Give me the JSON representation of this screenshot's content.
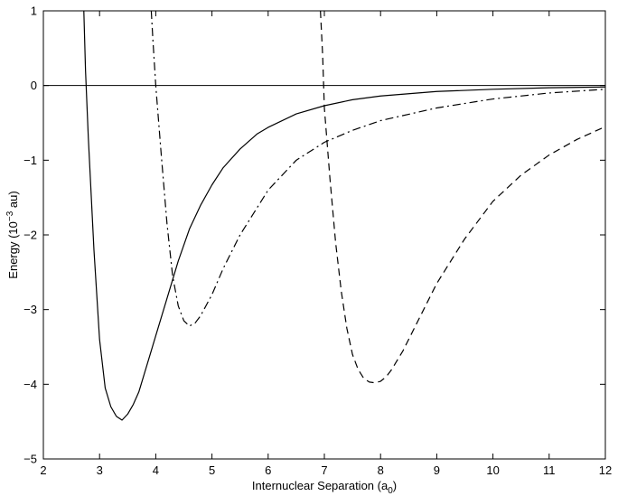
{
  "chart_data": {
    "type": "line",
    "title": "",
    "xlabel": "Internuclear Separation (a",
    "xlabel_sub": "0",
    "xlabel_close": ")",
    "ylabel": "Energy (10",
    "ylabel_sup": "−3",
    "ylabel_tail": " au)",
    "xlim": [
      2,
      12
    ],
    "ylim": [
      -5,
      1
    ],
    "xticks": [
      2,
      3,
      4,
      5,
      6,
      7,
      8,
      9,
      10,
      11,
      12
    ],
    "yticks": [
      -5,
      -4,
      -3,
      -2,
      -1,
      0,
      1
    ],
    "grid": false,
    "legend": "none",
    "reference_line": {
      "y": 0,
      "style": "solid"
    },
    "series": [
      {
        "style": "solid",
        "color": "#000000",
        "x": [
          2.72,
          2.75,
          2.8,
          2.9,
          3.0,
          3.1,
          3.2,
          3.3,
          3.4,
          3.5,
          3.6,
          3.7,
          3.8,
          3.9,
          4.0,
          4.2,
          4.4,
          4.6,
          4.8,
          5.0,
          5.2,
          5.5,
          5.8,
          6.0,
          6.5,
          7.0,
          7.5,
          8.0,
          9.0,
          10.0,
          11.0,
          12.0
        ],
        "y": [
          1.0,
          0.2,
          -0.7,
          -2.2,
          -3.4,
          -4.05,
          -4.3,
          -4.43,
          -4.48,
          -4.4,
          -4.27,
          -4.1,
          -3.85,
          -3.6,
          -3.35,
          -2.85,
          -2.35,
          -1.92,
          -1.6,
          -1.33,
          -1.1,
          -0.85,
          -0.65,
          -0.56,
          -0.38,
          -0.27,
          -0.19,
          -0.14,
          -0.08,
          -0.05,
          -0.03,
          -0.02
        ]
      },
      {
        "style": "dashdot",
        "color": "#000000",
        "x": [
          3.92,
          3.95,
          4.0,
          4.1,
          4.2,
          4.3,
          4.4,
          4.5,
          4.6,
          4.7,
          4.8,
          5.0,
          5.2,
          5.5,
          6.0,
          6.5,
          7.0,
          7.5,
          8.0,
          9.0,
          10.0,
          11.0,
          12.0
        ],
        "y": [
          1.0,
          0.6,
          0.0,
          -0.95,
          -1.85,
          -2.55,
          -2.95,
          -3.15,
          -3.22,
          -3.18,
          -3.08,
          -2.8,
          -2.45,
          -2.0,
          -1.4,
          -1.0,
          -0.76,
          -0.6,
          -0.47,
          -0.3,
          -0.18,
          -0.1,
          -0.05
        ]
      },
      {
        "style": "dashed",
        "color": "#000000",
        "x": [
          6.93,
          6.97,
          7.0,
          7.1,
          7.2,
          7.3,
          7.4,
          7.5,
          7.6,
          7.7,
          7.8,
          7.9,
          8.0,
          8.1,
          8.2,
          8.4,
          8.6,
          8.8,
          9.0,
          9.5,
          10.0,
          10.5,
          11.0,
          11.5,
          12.0
        ],
        "y": [
          1.0,
          0.4,
          -0.3,
          -1.25,
          -2.1,
          -2.75,
          -3.25,
          -3.6,
          -3.8,
          -3.92,
          -3.97,
          -3.98,
          -3.96,
          -3.9,
          -3.8,
          -3.55,
          -3.25,
          -2.95,
          -2.65,
          -2.05,
          -1.55,
          -1.2,
          -0.93,
          -0.72,
          -0.55
        ]
      }
    ]
  }
}
